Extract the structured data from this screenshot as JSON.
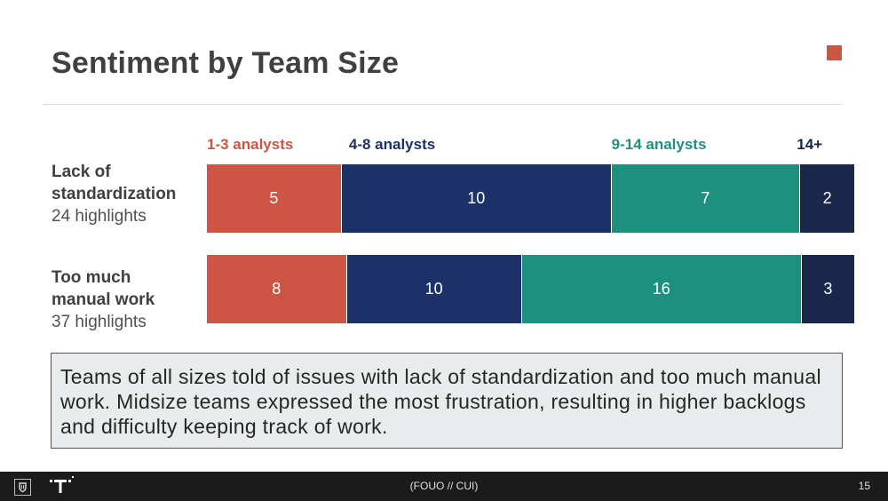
{
  "page": {
    "title": "Sentiment by Team Size",
    "callout": "Teams of all sizes told of issues with lack of standardization and too much manual work. Midsize teams expressed the most frustration, resulting in higher backlogs and difficulty keeping track of work.",
    "footer_text": "(FOUO // CUI)",
    "page_number": "15",
    "accent_color": "#cd5543",
    "icons": [
      "shield-icon",
      "t-logo-icon"
    ]
  },
  "chart_data": {
    "type": "bar",
    "orientation": "horizontal",
    "stacked": true,
    "title": "Sentiment by Team Size",
    "categories": [
      "Lack of standardization",
      "Too much manual work"
    ],
    "category_subtitles": [
      "24 highlights",
      "37 highlights"
    ],
    "series": [
      {
        "name": "1-3 analysts",
        "color": "#cd5543",
        "values": [
          5,
          8
        ]
      },
      {
        "name": "4-8 analysts",
        "color": "#1d3169",
        "values": [
          10,
          10
        ]
      },
      {
        "name": "9-14 analysts",
        "color": "#1e9080",
        "values": [
          7,
          16
        ]
      },
      {
        "name": "14+",
        "color": "#18274a",
        "values": [
          2,
          3
        ]
      }
    ],
    "legend_placement": "top",
    "grid": false
  }
}
